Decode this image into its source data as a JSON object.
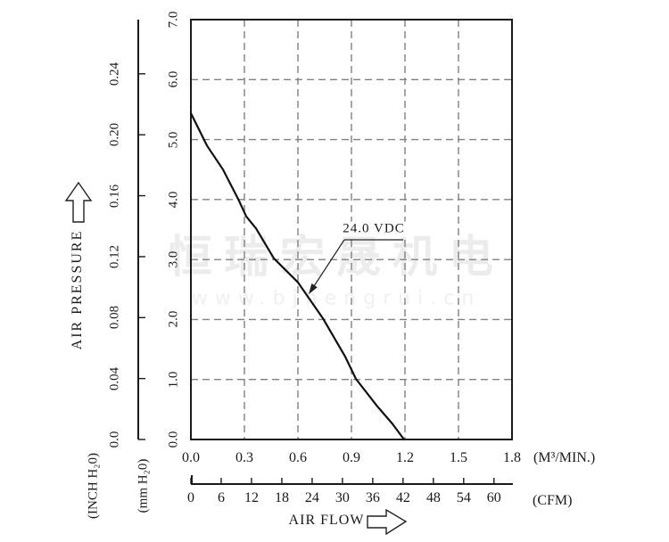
{
  "watermark": {
    "brand_cn": "恒瑞宏晟机电",
    "website": "www.bjhengrui.cn"
  },
  "chart_data": {
    "type": "line",
    "title": "",
    "legend": "none",
    "grid": "dashed",
    "x_axis": {
      "label": "AIR FLOW",
      "unit_primary": "(M³/MIN.)",
      "range": [
        0.0,
        1.8
      ],
      "grid_values": [
        0.3,
        0.6,
        0.9,
        1.2,
        1.5
      ],
      "ticks_primary": [
        {
          "label": "0.0",
          "value": 0.0
        },
        {
          "label": "0.3",
          "value": 0.3
        },
        {
          "label": "0.6",
          "value": 0.6
        },
        {
          "label": "0.9",
          "value": 0.9
        },
        {
          "label": "1.2",
          "value": 1.2
        },
        {
          "label": "1.5",
          "value": 1.5
        },
        {
          "label": "1.8",
          "value": 1.8
        }
      ],
      "unit_secondary": "(CFM)",
      "ticks_secondary": [
        {
          "label": "0",
          "value": 0
        },
        {
          "label": "6",
          "value": 6
        },
        {
          "label": "12",
          "value": 12
        },
        {
          "label": "18",
          "value": 18
        },
        {
          "label": "24",
          "value": 24
        },
        {
          "label": "30",
          "value": 30
        },
        {
          "label": "36",
          "value": 36
        },
        {
          "label": "42",
          "value": 42
        },
        {
          "label": "48",
          "value": 48
        },
        {
          "label": "54",
          "value": 54
        },
        {
          "label": "60",
          "value": 60
        }
      ]
    },
    "y_axis": {
      "label": "AIR PRESSURE",
      "unit_primary": "(mm H₂0)",
      "range": [
        0.0,
        7.0
      ],
      "grid_values": [
        1,
        2,
        3,
        4,
        5,
        6
      ],
      "ticks_primary": [
        {
          "label": "0.0",
          "value": 0.0
        },
        {
          "label": "1.0",
          "value": 1.0
        },
        {
          "label": "2.0",
          "value": 2.0
        },
        {
          "label": "3.0",
          "value": 3.0
        },
        {
          "label": "4.0",
          "value": 4.0
        },
        {
          "label": "5.0",
          "value": 5.0
        },
        {
          "label": "6.0",
          "value": 6.0
        },
        {
          "label": "7.0",
          "value": 7.0
        }
      ],
      "unit_secondary": "(INCH H₂0)",
      "ticks_secondary": [
        {
          "label": "0.0",
          "value": 0.0
        },
        {
          "label": "0.04",
          "value": 0.04
        },
        {
          "label": "0.08",
          "value": 0.08
        },
        {
          "label": "0.12",
          "value": 0.12
        },
        {
          "label": "0.16",
          "value": 0.16
        },
        {
          "label": "0.20",
          "value": 0.2
        },
        {
          "label": "0.24",
          "value": 0.24
        }
      ]
    },
    "series": [
      {
        "name": "24.0 VDC",
        "points": [
          [
            0.0,
            5.44
          ],
          [
            0.09,
            4.9
          ],
          [
            0.18,
            4.5
          ],
          [
            0.265,
            4.01
          ],
          [
            0.31,
            3.72
          ],
          [
            0.365,
            3.52
          ],
          [
            0.465,
            3.02
          ],
          [
            0.6,
            2.62
          ],
          [
            0.74,
            2.02
          ],
          [
            0.865,
            1.38
          ],
          [
            0.925,
            1.01
          ],
          [
            1.04,
            0.57
          ],
          [
            1.13,
            0.26
          ],
          [
            1.195,
            0.0
          ]
        ]
      }
    ],
    "annotation": {
      "text": "24.0 VDC",
      "points_to": [
        0.66,
        2.42
      ]
    }
  },
  "colors": {
    "axis": "#1a1a1a",
    "grid": "#818181",
    "curve": "#111111",
    "watermark": "#ececec",
    "background": "#ffffff"
  }
}
